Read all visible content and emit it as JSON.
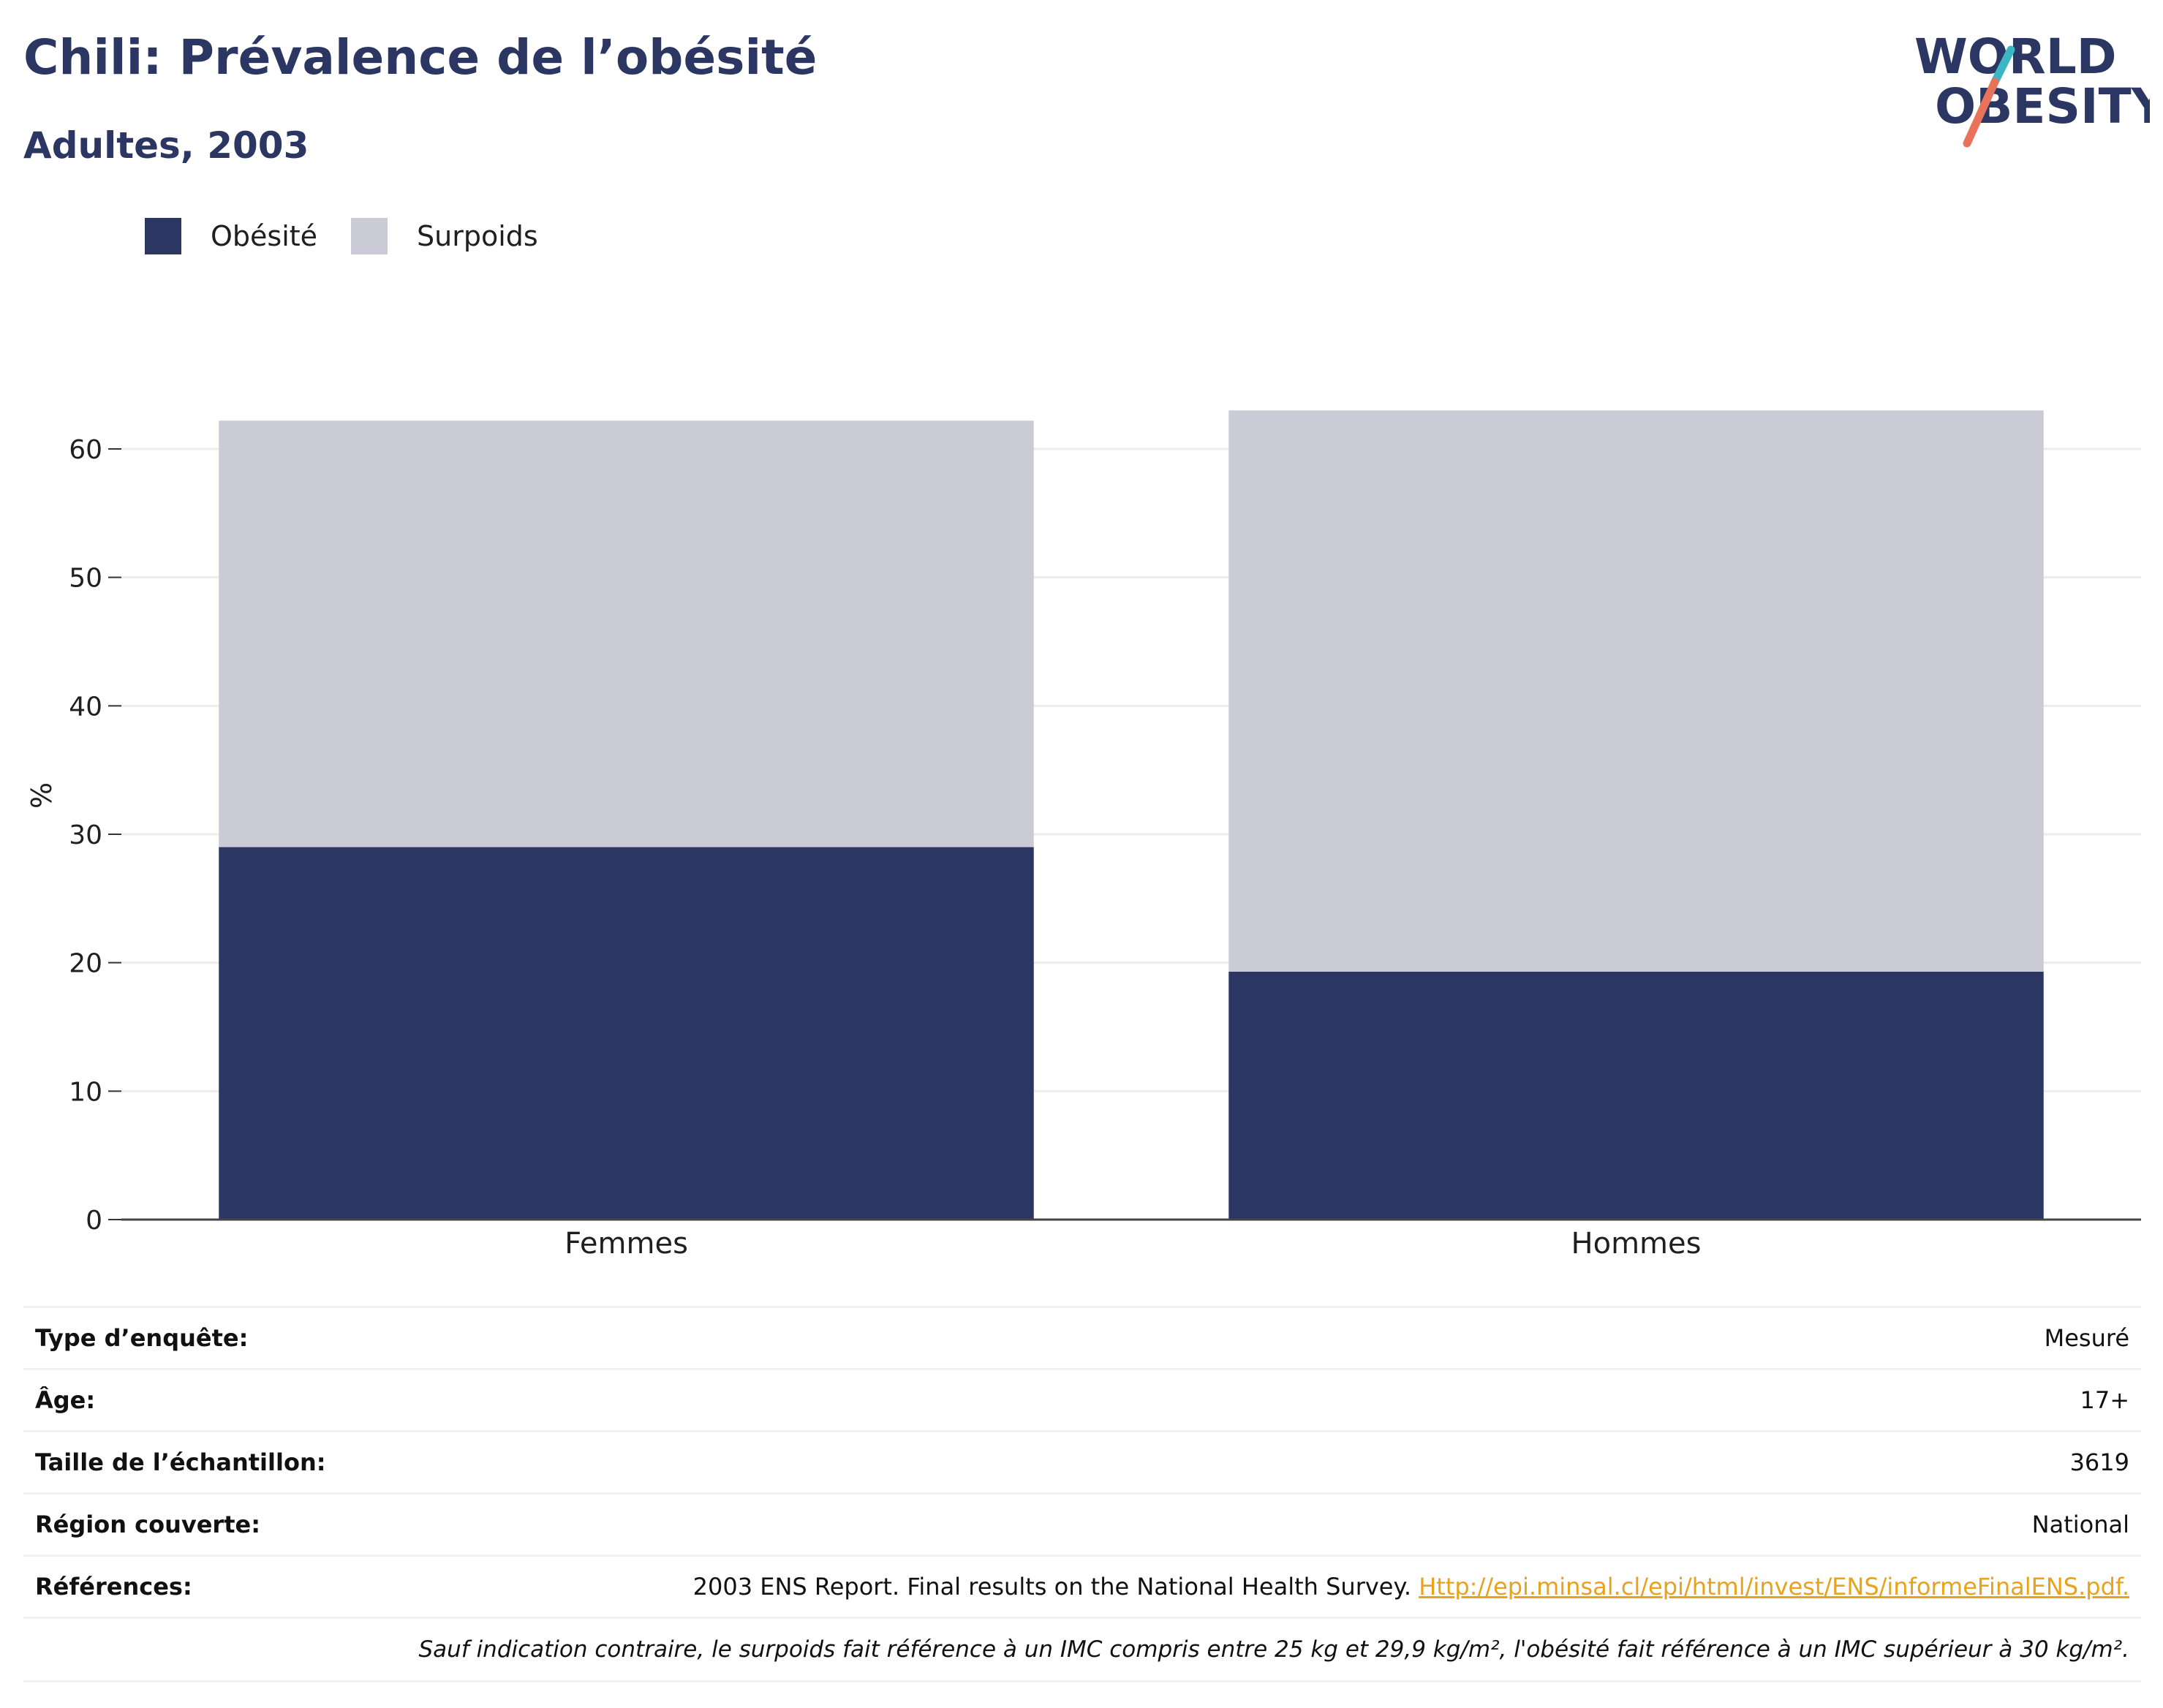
{
  "header": {
    "title": "Chili: Prévalence de l’obésité",
    "subtitle": "Adultes, 2003"
  },
  "logo": {
    "line1": "WORLD",
    "line2": "OBESITY",
    "primary_color": "#2b3663",
    "slash_colors": [
      "#3bb7c4",
      "#e8735a"
    ]
  },
  "legend": {
    "items": [
      {
        "label": "Obésité",
        "color": "#2b3663"
      },
      {
        "label": "Surpoids",
        "color": "#cacbd6"
      }
    ]
  },
  "chart_data": {
    "type": "bar",
    "stacked": true,
    "categories": [
      "Femmes",
      "Hommes"
    ],
    "series": [
      {
        "name": "Obésité",
        "values": [
          29.0,
          19.3
        ],
        "color": "#2b3663"
      },
      {
        "name": "Surpoids",
        "values": [
          33.2,
          43.7
        ],
        "color": "#cacbd6"
      }
    ],
    "ylabel": "%",
    "xlabel": "",
    "ylim": [
      0,
      65
    ],
    "yticks": [
      0,
      10,
      20,
      30,
      40,
      50,
      60
    ],
    "grid": true,
    "legend_position": "top-left"
  },
  "info": {
    "rows": [
      {
        "key": "Type d’enquête:",
        "value": "Mesuré"
      },
      {
        "key": "Âge:",
        "value": "17+"
      },
      {
        "key": "Taille de l’échantillon:",
        "value": "3619"
      },
      {
        "key": "Région couverte:",
        "value": "National"
      }
    ],
    "references": {
      "key": "Références:",
      "text": "2003 ENS Report. Final results on the National Health Survey. ",
      "link": "Http://epi.minsal.cl/epi/html/invest/ENS/informeFinalENS.pdf."
    },
    "note": "Sauf indication contraire, le surpoids fait référence à un IMC compris entre 25 kg et 29,9 kg/m², l'obésité fait référence à un IMC supérieur à 30 kg/m²."
  }
}
